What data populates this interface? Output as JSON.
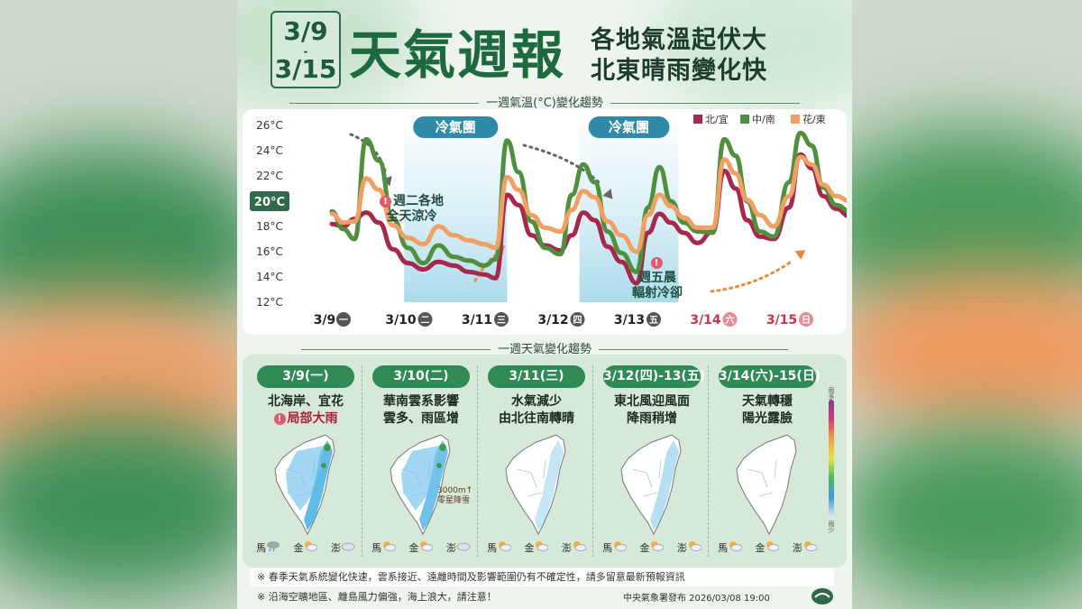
{
  "header": {
    "date_start": "3/9",
    "date_sep": "-",
    "date_end": "3/15",
    "title": "天氣週報",
    "subtitle_1": "各地氣溫起伏大",
    "subtitle_2": "北東晴雨變化快"
  },
  "chart_section_title": "一週氣溫(°C)變化趨勢",
  "weather_section_title": "一週天氣變化趨勢",
  "chart_data": {
    "type": "line",
    "title": "一週氣溫(°C)變化趨勢",
    "yticks": [
      "26°C",
      "24°C",
      "22°C",
      "20°C",
      "18°C",
      "16°C",
      "14°C",
      "12°C"
    ],
    "ylim": [
      12,
      26
    ],
    "highlight_tick": "20°C",
    "day_labels": [
      {
        "date": "3/9",
        "dow": "一",
        "weekend": false
      },
      {
        "date": "3/10",
        "dow": "二",
        "weekend": false
      },
      {
        "date": "3/11",
        "dow": "三",
        "weekend": false
      },
      {
        "date": "3/12",
        "dow": "四",
        "weekend": false
      },
      {
        "date": "3/13",
        "dow": "五",
        "weekend": false
      },
      {
        "date": "3/14",
        "dow": "六",
        "weekend": true
      },
      {
        "date": "3/15",
        "dow": "日",
        "weekend": true
      }
    ],
    "x_times": [
      0,
      0.15,
      0.3,
      0.45,
      0.62,
      0.8,
      1.0,
      1.2,
      1.4,
      1.6,
      1.8,
      2.0,
      2.15,
      2.3,
      2.45,
      2.62,
      2.8,
      3.0,
      3.15,
      3.3,
      3.45,
      3.62,
      3.8,
      4.0,
      4.15,
      4.3,
      4.45,
      4.62,
      4.8,
      5.0,
      5.15,
      5.3,
      5.45,
      5.62,
      5.8,
      6.0,
      6.15,
      6.3,
      6.45,
      6.62,
      6.8,
      7.0
    ],
    "series": [
      {
        "name": "北/宜",
        "color": "#a6294b",
        "values": [
          18.2,
          18.0,
          18.6,
          19.1,
          18.3,
          16.2,
          15.1,
          14.6,
          15.2,
          14.9,
          14.4,
          14.2,
          13.9,
          20.5,
          19.7,
          17.3,
          16.5,
          16.1,
          17.3,
          19.1,
          18.5,
          16.4,
          15.2,
          13.5,
          17.5,
          19.0,
          18.3,
          17.5,
          16.7,
          17.6,
          22.4,
          21.0,
          18.5,
          17.2,
          17.0,
          19.5,
          23.7,
          22.6,
          20.4,
          19.4,
          18.8,
          18.7
        ]
      },
      {
        "name": "中/南",
        "color": "#4f8f3d",
        "values": [
          19.2,
          17.8,
          17.0,
          24.9,
          23.2,
          18.6,
          16.3,
          15.1,
          16.5,
          15.6,
          15.3,
          14.9,
          15.4,
          24.8,
          22.3,
          18.4,
          16.3,
          15.8,
          20.5,
          22.9,
          21.5,
          17.6,
          15.9,
          14.4,
          19.5,
          22.7,
          20.0,
          18.3,
          17.6,
          17.5,
          24.9,
          23.6,
          20.0,
          17.6,
          17.2,
          21.5,
          25.4,
          24.4,
          21.1,
          19.7,
          19.2,
          18.7
        ]
      },
      {
        "name": "花/東",
        "color": "#f0a062",
        "values": [
          19.0,
          18.3,
          18.4,
          21.8,
          20.9,
          18.1,
          17.1,
          16.6,
          18.0,
          17.3,
          16.9,
          16.6,
          16.3,
          21.9,
          20.9,
          18.9,
          17.9,
          17.6,
          19.3,
          20.8,
          20.3,
          18.4,
          17.3,
          16.0,
          18.9,
          20.5,
          19.6,
          18.7,
          17.9,
          17.9,
          23.3,
          22.2,
          20.1,
          18.9,
          18.0,
          20.4,
          23.5,
          22.9,
          21.3,
          20.4,
          20.0,
          19.9
        ]
      }
    ],
    "legend_position": "top-right",
    "cold_bands": [
      {
        "label": "冷氣團",
        "from": 0.95,
        "to": 2.3
      },
      {
        "label": "冷氣團",
        "from": 3.25,
        "to": 4.55
      }
    ],
    "annotations": [
      {
        "line1": "週二各地",
        "line2": "全天涼冷"
      },
      {
        "line1": "週五晨",
        "line2": "輻射冷卻"
      }
    ]
  },
  "weather_cards": [
    {
      "date": "3/9(一)",
      "line1": "北海岸、宜花",
      "line2": "局部大雨",
      "line2_warn": true,
      "note_line1": "",
      "note_line2": "",
      "islands": [
        "馬",
        "金",
        "澎"
      ],
      "icons": [
        "rain-cloud-icon",
        "partly-sunny-icon",
        "cloud-icon"
      ]
    },
    {
      "date": "3/10(二)",
      "line1": "華南雲系影響",
      "line2": "雲多、雨區增",
      "line2_warn": false,
      "note_line1": "3000m↑",
      "note_line2": "零星降雪",
      "islands": [
        "馬",
        "金",
        "澎"
      ],
      "icons": [
        "partly-sunny-icon",
        "partly-sunny-icon",
        "cloud-icon"
      ]
    },
    {
      "date": "3/11(三)",
      "line1": "水氣減少",
      "line2": "由北往南轉晴",
      "line2_warn": false,
      "note_line1": "",
      "note_line2": "",
      "islands": [
        "馬",
        "金",
        "澎"
      ],
      "icons": [
        "partly-sunny-icon",
        "partly-sunny-icon",
        "partly-sunny-icon"
      ]
    },
    {
      "date": "3/12(四)-13(五)",
      "line1": "東北風迎風面",
      "line2": "降雨稍增",
      "line2_warn": false,
      "note_line1": "",
      "note_line2": "",
      "islands": [
        "馬",
        "金",
        "澎"
      ],
      "icons": [
        "partly-sunny-icon",
        "partly-sunny-icon",
        "partly-sunny-icon"
      ]
    },
    {
      "date": "3/14(六)-15(日)",
      "line1": "天氣轉穩",
      "line2": "陽光露臉",
      "line2_warn": false,
      "note_line1": "",
      "note_line2": "",
      "islands": [
        "馬",
        "金",
        "澎"
      ],
      "icons": [
        "partly-sunny-icon",
        "partly-sunny-icon",
        "partly-sunny-icon"
      ]
    }
  ],
  "rain_scale": {
    "top": "雨多",
    "bottom": "雨少"
  },
  "footnotes": [
    "※ 春季天氣系統變化快速，雲系接近、遠離時間及影響範圍仍有不確定性，請多留意最新預報資訊",
    "※ 沿海空曠地區、離島風力偏強，海上浪大，請注意！"
  ],
  "issuer": "中央氣象署發布 2026/03/08 19:00"
}
